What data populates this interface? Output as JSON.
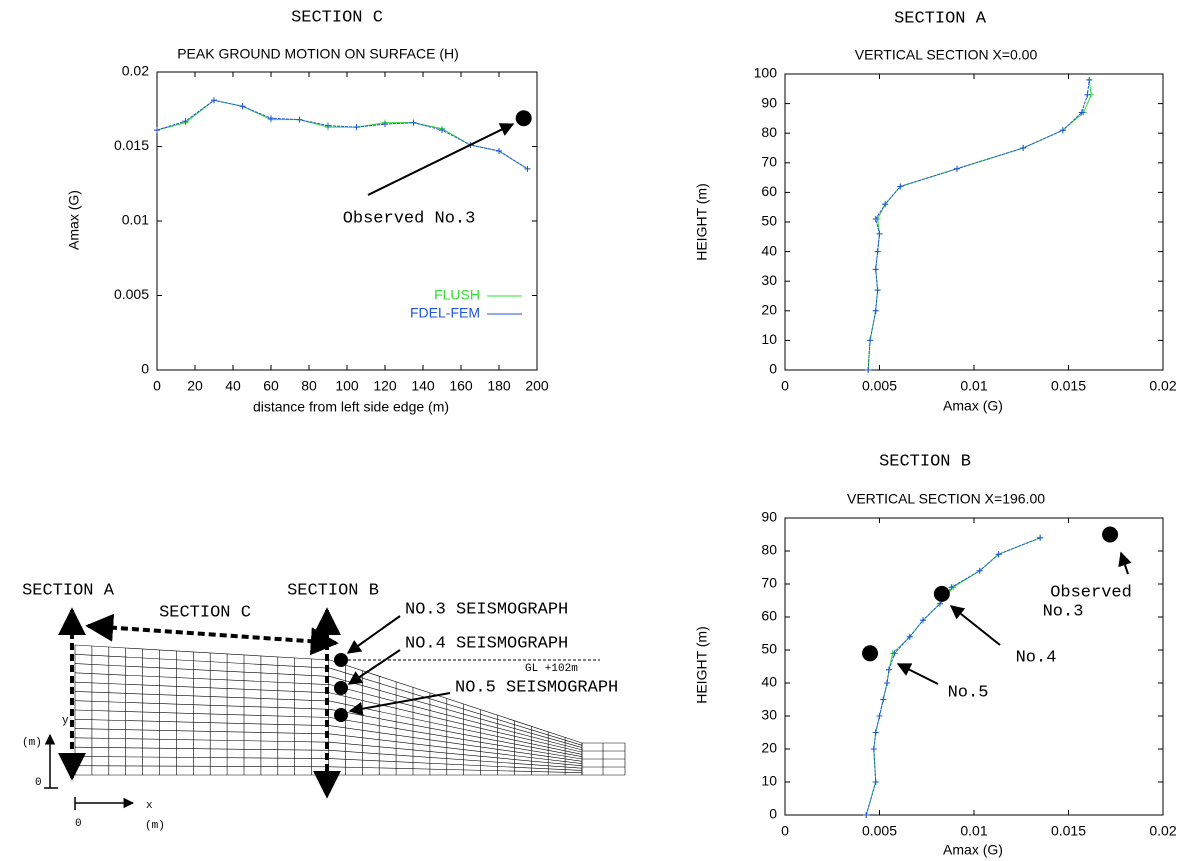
{
  "chart_data": [
    {
      "type": "line",
      "section": "SECTION C",
      "title": "PEAK GROUND MOTION ON SURFACE (H)",
      "x_label": "distance from left side edge (m)",
      "y_label": "Amax (G)",
      "x": [
        0,
        15,
        30,
        45,
        60,
        75,
        90,
        105,
        120,
        135,
        150,
        165,
        180,
        195
      ],
      "series": [
        {
          "name": "FLUSH",
          "color": "#33dd33",
          "values": [
            0.0161,
            0.0166,
            0.0181,
            0.0177,
            0.0168,
            0.0168,
            0.0163,
            0.0163,
            0.0166,
            0.0166,
            0.0162,
            0.0151,
            0.0147,
            0.0135
          ]
        },
        {
          "name": "FDEL-FEM",
          "color": "#2255dd",
          "values": [
            0.0161,
            0.0167,
            0.0181,
            0.0177,
            0.0169,
            0.0168,
            0.0164,
            0.0163,
            0.0165,
            0.0166,
            0.0161,
            0.0151,
            0.0147,
            0.0135
          ]
        }
      ],
      "xlim": [
        0,
        200
      ],
      "xticks": [
        0,
        20,
        40,
        60,
        80,
        100,
        120,
        140,
        160,
        180,
        200
      ],
      "ylim": [
        0,
        0.02
      ],
      "yticks": [
        0,
        0.005,
        0.01,
        0.015,
        0.02
      ],
      "legend": "right",
      "annotations": [
        {
          "text": "Observed No.3",
          "x": 193,
          "y": 0.0169
        }
      ]
    },
    {
      "type": "line",
      "value_axis": "x",
      "section": "SECTION A",
      "title": "VERTICAL SECTION X=0.00",
      "x_label": "Amax (G)",
      "y_label": "HEIGHT (m)",
      "y": [
        0,
        10,
        20,
        27,
        34,
        40,
        46,
        51,
        56,
        62,
        68,
        75,
        81,
        87,
        93,
        98
      ],
      "series": [
        {
          "color": "#33dd33",
          "values": [
            0.0044,
            0.0045,
            0.0048,
            0.0049,
            0.0048,
            0.0049,
            0.005,
            0.0049,
            0.0053,
            0.0061,
            0.0091,
            0.0126,
            0.0147,
            0.0158,
            0.0162,
            0.0161
          ]
        },
        {
          "color": "#2255dd",
          "values": [
            0.0044,
            0.0045,
            0.0048,
            0.0049,
            0.0048,
            0.0049,
            0.005,
            0.0048,
            0.0053,
            0.0061,
            0.0091,
            0.0126,
            0.0147,
            0.0157,
            0.016,
            0.0161
          ]
        }
      ],
      "xlim": [
        0,
        0.02
      ],
      "xticks": [
        0,
        0.005,
        0.01,
        0.015,
        0.02
      ],
      "ylim": [
        0,
        100
      ],
      "yticks": [
        0,
        10,
        20,
        30,
        40,
        50,
        60,
        70,
        80,
        90,
        100
      ]
    },
    {
      "type": "line",
      "value_axis": "x",
      "section": "SECTION B",
      "title": "VERTICAL SECTION X=196.00",
      "x_label": "Amax (G)",
      "y_label": "HEIGHT (m)",
      "y": [
        0,
        10,
        20,
        25,
        30,
        35,
        40,
        44,
        49,
        54,
        59,
        64,
        69,
        74,
        79,
        84
      ],
      "series": [
        {
          "color": "#33dd33",
          "values": [
            0.0043,
            0.0048,
            0.0047,
            0.0048,
            0.005,
            0.0052,
            0.0054,
            0.0055,
            0.0057,
            0.0066,
            0.0073,
            0.0082,
            0.0089,
            0.0103,
            0.0113,
            0.0135
          ]
        },
        {
          "color": "#2255dd",
          "values": [
            0.0043,
            0.0048,
            0.0047,
            0.0048,
            0.005,
            0.0052,
            0.0054,
            0.0055,
            0.0058,
            0.0066,
            0.0073,
            0.0082,
            0.0088,
            0.0103,
            0.0113,
            0.0135
          ]
        }
      ],
      "xlim": [
        0,
        0.02
      ],
      "xticks": [
        0,
        0.005,
        0.01,
        0.015,
        0.02
      ],
      "ylim": [
        0,
        90
      ],
      "yticks": [
        0,
        10,
        20,
        30,
        40,
        50,
        60,
        70,
        80,
        90
      ],
      "annotations": [
        {
          "text": [
            "Observed",
            "No.3"
          ],
          "x": 0.0172,
          "y": 85
        },
        {
          "text": [
            "No.4"
          ],
          "x": 0.0083,
          "y": 67
        },
        {
          "text": [
            "No.5"
          ],
          "x": 0.0045,
          "y": 49
        }
      ]
    }
  ],
  "diagram": {
    "section_a": "SECTION A",
    "section_b": "SECTION B",
    "section_c": "SECTION C",
    "no3": "NO.3 SEISMOGRAPH",
    "no4": "NO.4 SEISMOGRAPH",
    "no5": "NO.5 SEISMOGRAPH",
    "gl": "GL +102m",
    "y_axis": "y",
    "y_unit": "(m)",
    "y_origin": "0",
    "x_axis": "x",
    "x_unit": "(m)",
    "x_origin": "0"
  }
}
